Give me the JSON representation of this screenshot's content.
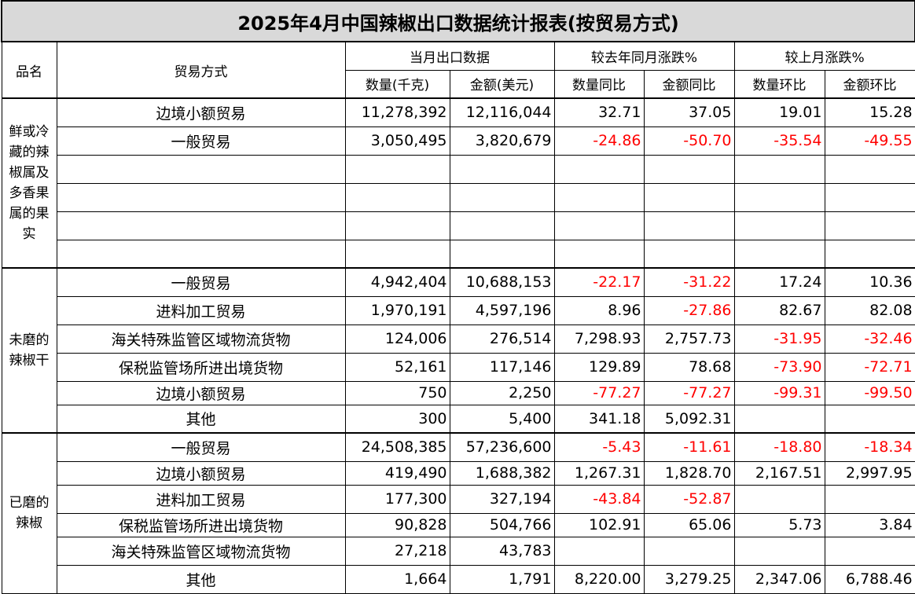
{
  "title": "2025年4月中国辣椒出口数据统计报表(按贸易方式)",
  "headers": {
    "product": "品名",
    "mode": "贸易方式",
    "group_current": "当月出口数据",
    "group_yoy": "较去年同月涨跌%",
    "group_mom": "较上月涨跌%",
    "qty": "数量(千克)",
    "amt": "金额(美元)",
    "qty_yoy": "数量同比",
    "amt_yoy": "金额同比",
    "qty_mom": "数量环比",
    "amt_mom": "金额环比"
  },
  "sections": [
    {
      "product": "鲜或冷藏的辣椒属及多香果属的果实",
      "rows": [
        {
          "mode": "边境小额贸易",
          "qty": "11,278,392",
          "amt": "12,116,044",
          "qty_yoy": "32.71",
          "amt_yoy": "37.05",
          "qty_mom": "19.01",
          "amt_mom": "15.28"
        },
        {
          "mode": "一般贸易",
          "qty": "3,050,495",
          "amt": "3,820,679",
          "qty_yoy": "-24.86",
          "amt_yoy": "-50.70",
          "qty_mom": "-35.54",
          "amt_mom": "-49.55"
        },
        {
          "mode": "",
          "qty": "",
          "amt": "",
          "qty_yoy": "",
          "amt_yoy": "",
          "qty_mom": "",
          "amt_mom": ""
        },
        {
          "mode": "",
          "qty": "",
          "amt": "",
          "qty_yoy": "",
          "amt_yoy": "",
          "qty_mom": "",
          "amt_mom": ""
        },
        {
          "mode": "",
          "qty": "",
          "amt": "",
          "qty_yoy": "",
          "amt_yoy": "",
          "qty_mom": "",
          "amt_mom": ""
        },
        {
          "mode": "",
          "qty": "",
          "amt": "",
          "qty_yoy": "",
          "amt_yoy": "",
          "qty_mom": "",
          "amt_mom": ""
        }
      ]
    },
    {
      "product": "未磨的辣椒干",
      "rows": [
        {
          "mode": "一般贸易",
          "qty": "4,942,404",
          "amt": "10,688,153",
          "qty_yoy": "-22.17",
          "amt_yoy": "-31.22",
          "qty_mom": "17.24",
          "amt_mom": "10.36"
        },
        {
          "mode": "进料加工贸易",
          "qty": "1,970,191",
          "amt": "4,597,196",
          "qty_yoy": "8.96",
          "amt_yoy": "-27.86",
          "qty_mom": "82.67",
          "amt_mom": "82.08"
        },
        {
          "mode": "海关特殊监管区域物流货物",
          "qty": "124,006",
          "amt": "276,514",
          "qty_yoy": "7,298.93",
          "amt_yoy": "2,757.73",
          "qty_mom": "-31.95",
          "amt_mom": "-32.46"
        },
        {
          "mode": "保税监管场所进出境货物",
          "qty": "52,161",
          "amt": "117,146",
          "qty_yoy": "129.89",
          "amt_yoy": "78.68",
          "qty_mom": "-73.90",
          "amt_mom": "-72.71"
        },
        {
          "mode": "边境小额贸易",
          "qty": "750",
          "amt": "2,250",
          "qty_yoy": "-77.27",
          "amt_yoy": "-77.27",
          "qty_mom": "-99.31",
          "amt_mom": "-99.50"
        },
        {
          "mode": "其他",
          "qty": "300",
          "amt": "5,400",
          "qty_yoy": "341.18",
          "amt_yoy": "5,092.31",
          "qty_mom": "",
          "amt_mom": ""
        }
      ]
    },
    {
      "product": "已磨的辣椒",
      "rows": [
        {
          "mode": "一般贸易",
          "qty": "24,508,385",
          "amt": "57,236,600",
          "qty_yoy": "-5.43",
          "amt_yoy": "-11.61",
          "qty_mom": "-18.80",
          "amt_mom": "-18.34"
        },
        {
          "mode": "边境小额贸易",
          "qty": "419,490",
          "amt": "1,688,382",
          "qty_yoy": "1,267.31",
          "amt_yoy": "1,828.70",
          "qty_mom": "2,167.51",
          "amt_mom": "2,997.95"
        },
        {
          "mode": "进料加工贸易",
          "qty": "177,300",
          "amt": "327,194",
          "qty_yoy": "-43.84",
          "amt_yoy": "-52.87",
          "qty_mom": "",
          "amt_mom": ""
        },
        {
          "mode": "保税监管场所进出境货物",
          "qty": "90,828",
          "amt": "504,766",
          "qty_yoy": "102.91",
          "amt_yoy": "65.06",
          "qty_mom": "5.73",
          "amt_mom": "3.84"
        },
        {
          "mode": "海关特殊监管区域物流货物",
          "qty": "27,218",
          "amt": "43,783",
          "qty_yoy": "",
          "amt_yoy": "",
          "qty_mom": "",
          "amt_mom": ""
        },
        {
          "mode": "其他",
          "qty": "1,664",
          "amt": "1,791",
          "qty_yoy": "8,220.00",
          "amt_yoy": "3,279.25",
          "qty_mom": "2,347.06",
          "amt_mom": "6,788.46"
        }
      ]
    }
  ]
}
